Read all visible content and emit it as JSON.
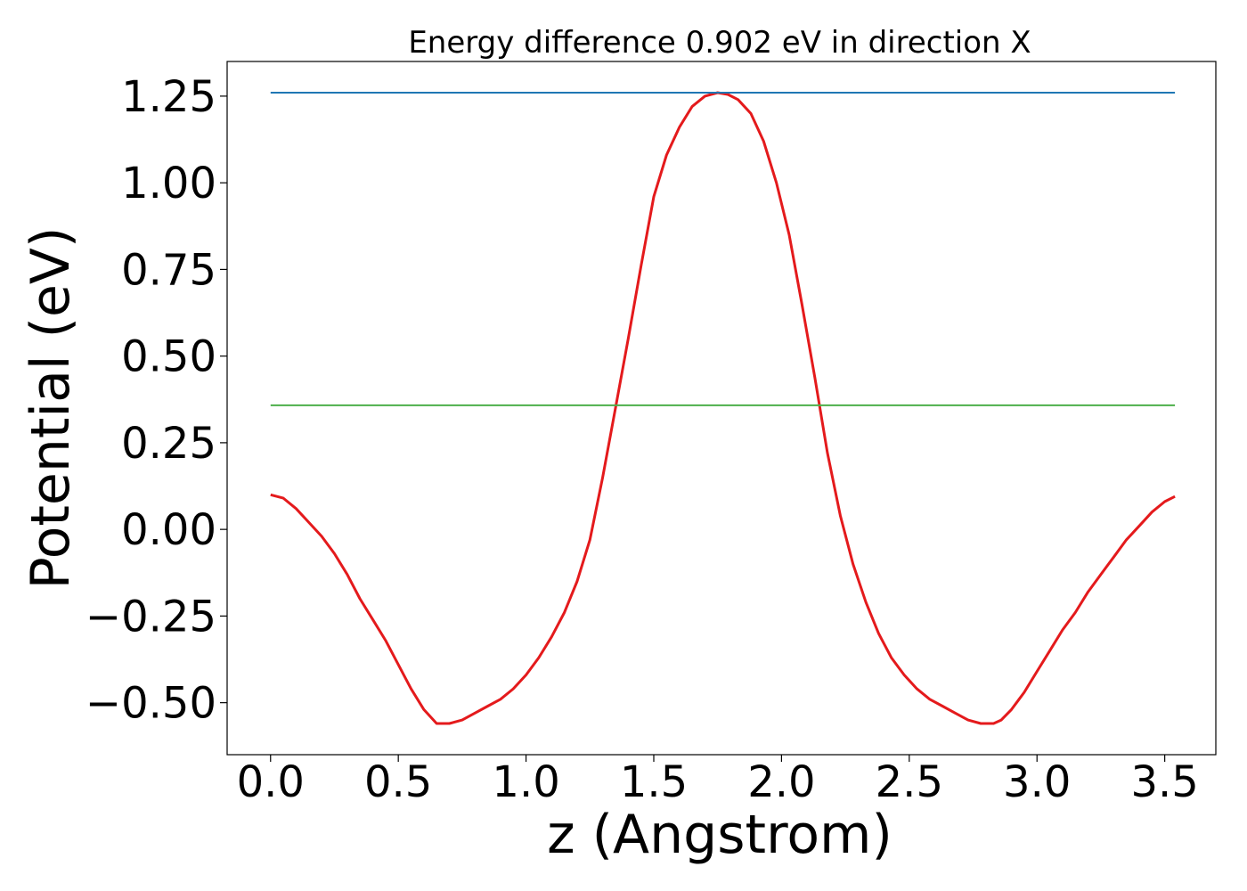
{
  "chart_data": {
    "type": "line",
    "title": "Energy difference 0.902 eV in direction X",
    "xlabel": "z (Angstrom)",
    "ylabel": "Potential (eV)",
    "xlim": [
      -0.17,
      3.7
    ],
    "ylim": [
      -0.65,
      1.35
    ],
    "xticks": [
      0.0,
      0.5,
      1.0,
      1.5,
      2.0,
      2.5,
      3.0,
      3.5
    ],
    "xtick_labels": [
      "0.0",
      "0.5",
      "1.0",
      "1.5",
      "2.0",
      "2.5",
      "3.0",
      "3.5"
    ],
    "yticks": [
      -0.5,
      -0.25,
      0.0,
      0.25,
      0.5,
      0.75,
      1.0,
      1.25
    ],
    "ytick_labels": [
      "−0.50",
      "−0.25",
      "0.00",
      "0.25",
      "0.50",
      "0.75",
      "1.00",
      "1.25"
    ],
    "grid": false,
    "series": [
      {
        "color": "#e41a1c",
        "x": [
          0.0,
          0.05,
          0.1,
          0.15,
          0.2,
          0.25,
          0.3,
          0.35,
          0.4,
          0.45,
          0.5,
          0.55,
          0.6,
          0.65,
          0.7,
          0.75,
          0.8,
          0.85,
          0.9,
          0.95,
          1.0,
          1.05,
          1.1,
          1.15,
          1.2,
          1.25,
          1.3,
          1.35,
          1.4,
          1.45,
          1.5,
          1.55,
          1.6,
          1.65,
          1.7,
          1.75,
          1.79,
          1.83,
          1.88,
          1.93,
          1.98,
          2.03,
          2.08,
          2.13,
          2.18,
          2.23,
          2.28,
          2.33,
          2.38,
          2.43,
          2.48,
          2.53,
          2.58,
          2.63,
          2.68,
          2.73,
          2.78,
          2.83,
          2.86,
          2.9,
          2.95,
          3.0,
          3.05,
          3.1,
          3.15,
          3.2,
          3.25,
          3.3,
          3.35,
          3.4,
          3.45,
          3.5,
          3.54
        ],
        "y": [
          0.1,
          0.09,
          0.06,
          0.02,
          -0.02,
          -0.07,
          -0.13,
          -0.2,
          -0.26,
          -0.32,
          -0.39,
          -0.46,
          -0.52,
          -0.56,
          -0.56,
          -0.55,
          -0.53,
          -0.51,
          -0.49,
          -0.46,
          -0.42,
          -0.37,
          -0.31,
          -0.24,
          -0.15,
          -0.03,
          0.15,
          0.35,
          0.55,
          0.76,
          0.96,
          1.08,
          1.16,
          1.22,
          1.25,
          1.26,
          1.255,
          1.24,
          1.2,
          1.12,
          1.0,
          0.85,
          0.65,
          0.44,
          0.22,
          0.04,
          -0.1,
          -0.21,
          -0.3,
          -0.37,
          -0.42,
          -0.46,
          -0.49,
          -0.51,
          -0.53,
          -0.55,
          -0.56,
          -0.56,
          -0.55,
          -0.52,
          -0.47,
          -0.41,
          -0.35,
          -0.29,
          -0.24,
          -0.18,
          -0.13,
          -0.08,
          -0.03,
          0.01,
          0.05,
          0.08,
          0.095
        ]
      },
      {
        "color": "#1f77b4",
        "x": [
          0.0,
          3.54
        ],
        "y": [
          1.26,
          1.26
        ]
      },
      {
        "color": "#4daf4a",
        "x": [
          0.0,
          3.54
        ],
        "y": [
          0.358,
          0.358
        ]
      }
    ]
  }
}
